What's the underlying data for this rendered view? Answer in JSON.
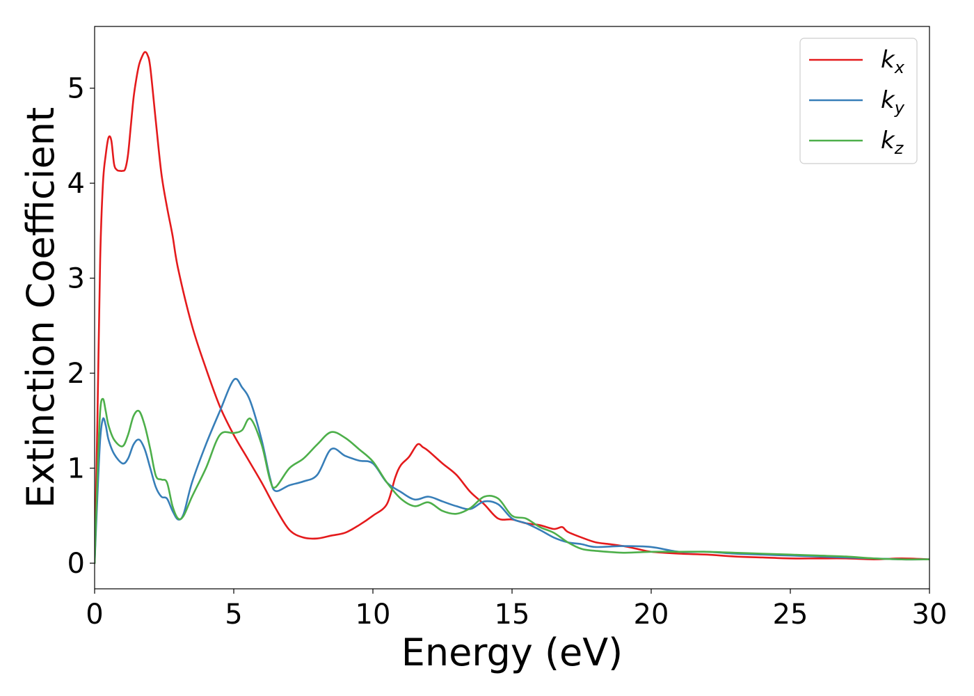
{
  "chart_data": {
    "type": "line",
    "xlabel": "Energy (eV)",
    "ylabel": "Extinction Coefficient",
    "xlim": [
      0,
      30
    ],
    "ylim": [
      -0.27,
      5.65
    ],
    "xticks": [
      0,
      5,
      10,
      15,
      20,
      25,
      30
    ],
    "xtick_labels": [
      "0",
      "5",
      "10",
      "15",
      "20",
      "25",
      "30"
    ],
    "yticks": [
      0,
      1,
      2,
      3,
      4,
      5
    ],
    "ytick_labels": [
      "0",
      "1",
      "2",
      "3",
      "4",
      "5"
    ],
    "grid": false,
    "legend_position": "top-right",
    "series": [
      {
        "name": "k",
        "subscript": "x",
        "color": "#e41a1c",
        "points": [
          [
            0,
            0
          ],
          [
            0.1,
            1.5
          ],
          [
            0.2,
            3.2
          ],
          [
            0.3,
            4.0
          ],
          [
            0.4,
            4.3
          ],
          [
            0.5,
            4.48
          ],
          [
            0.6,
            4.45
          ],
          [
            0.7,
            4.2
          ],
          [
            0.8,
            4.14
          ],
          [
            0.9,
            4.13
          ],
          [
            1.0,
            4.13
          ],
          [
            1.1,
            4.15
          ],
          [
            1.2,
            4.3
          ],
          [
            1.3,
            4.6
          ],
          [
            1.4,
            4.9
          ],
          [
            1.5,
            5.1
          ],
          [
            1.6,
            5.25
          ],
          [
            1.7,
            5.33
          ],
          [
            1.8,
            5.38
          ],
          [
            1.9,
            5.35
          ],
          [
            2.0,
            5.22
          ],
          [
            2.2,
            4.65
          ],
          [
            2.4,
            4.1
          ],
          [
            2.6,
            3.75
          ],
          [
            2.8,
            3.45
          ],
          [
            3.0,
            3.1
          ],
          [
            3.5,
            2.5
          ],
          [
            4.0,
            2.05
          ],
          [
            4.5,
            1.65
          ],
          [
            5.0,
            1.35
          ],
          [
            5.5,
            1.1
          ],
          [
            6.0,
            0.85
          ],
          [
            6.5,
            0.58
          ],
          [
            7.0,
            0.35
          ],
          [
            7.5,
            0.27
          ],
          [
            8.0,
            0.26
          ],
          [
            8.5,
            0.29
          ],
          [
            9.0,
            0.32
          ],
          [
            9.5,
            0.4
          ],
          [
            10.0,
            0.5
          ],
          [
            10.5,
            0.62
          ],
          [
            10.8,
            0.9
          ],
          [
            11.0,
            1.03
          ],
          [
            11.3,
            1.12
          ],
          [
            11.6,
            1.25
          ],
          [
            11.8,
            1.22
          ],
          [
            12.0,
            1.18
          ],
          [
            12.5,
            1.05
          ],
          [
            13.0,
            0.93
          ],
          [
            13.5,
            0.75
          ],
          [
            14.0,
            0.62
          ],
          [
            14.5,
            0.47
          ],
          [
            15.0,
            0.46
          ],
          [
            15.5,
            0.42
          ],
          [
            16.0,
            0.4
          ],
          [
            16.5,
            0.36
          ],
          [
            16.8,
            0.38
          ],
          [
            17.0,
            0.33
          ],
          [
            17.5,
            0.27
          ],
          [
            18.0,
            0.22
          ],
          [
            18.5,
            0.2
          ],
          [
            19.0,
            0.18
          ],
          [
            19.5,
            0.15
          ],
          [
            20.0,
            0.12
          ],
          [
            21.0,
            0.1
          ],
          [
            22.0,
            0.09
          ],
          [
            23.0,
            0.07
          ],
          [
            24.0,
            0.06
          ],
          [
            25.0,
            0.05
          ],
          [
            26.0,
            0.05
          ],
          [
            27.0,
            0.05
          ],
          [
            28.0,
            0.04
          ],
          [
            29.0,
            0.05
          ],
          [
            30.0,
            0.04
          ]
        ]
      },
      {
        "name": "k",
        "subscript": "y",
        "color": "#377eb8",
        "points": [
          [
            0,
            0
          ],
          [
            0.1,
            0.7
          ],
          [
            0.2,
            1.3
          ],
          [
            0.3,
            1.52
          ],
          [
            0.4,
            1.45
          ],
          [
            0.5,
            1.3
          ],
          [
            0.7,
            1.15
          ],
          [
            1.0,
            1.05
          ],
          [
            1.2,
            1.1
          ],
          [
            1.4,
            1.25
          ],
          [
            1.6,
            1.3
          ],
          [
            1.8,
            1.2
          ],
          [
            2.0,
            1.0
          ],
          [
            2.2,
            0.8
          ],
          [
            2.4,
            0.7
          ],
          [
            2.6,
            0.68
          ],
          [
            2.8,
            0.55
          ],
          [
            3.0,
            0.46
          ],
          [
            3.2,
            0.52
          ],
          [
            3.5,
            0.85
          ],
          [
            4.0,
            1.25
          ],
          [
            4.5,
            1.6
          ],
          [
            5.0,
            1.93
          ],
          [
            5.3,
            1.85
          ],
          [
            5.6,
            1.7
          ],
          [
            6.0,
            1.3
          ],
          [
            6.3,
            0.9
          ],
          [
            6.5,
            0.76
          ],
          [
            7.0,
            0.82
          ],
          [
            7.5,
            0.86
          ],
          [
            8.0,
            0.93
          ],
          [
            8.5,
            1.2
          ],
          [
            9.0,
            1.13
          ],
          [
            9.5,
            1.08
          ],
          [
            10.0,
            1.05
          ],
          [
            10.5,
            0.85
          ],
          [
            11.0,
            0.75
          ],
          [
            11.5,
            0.67
          ],
          [
            12.0,
            0.7
          ],
          [
            12.5,
            0.65
          ],
          [
            13.0,
            0.6
          ],
          [
            13.5,
            0.57
          ],
          [
            14.0,
            0.65
          ],
          [
            14.5,
            0.62
          ],
          [
            15.0,
            0.47
          ],
          [
            15.5,
            0.42
          ],
          [
            16.0,
            0.35
          ],
          [
            16.5,
            0.27
          ],
          [
            17.0,
            0.22
          ],
          [
            17.5,
            0.2
          ],
          [
            18.0,
            0.17
          ],
          [
            19.0,
            0.18
          ],
          [
            20.0,
            0.17
          ],
          [
            21.0,
            0.12
          ],
          [
            22.0,
            0.12
          ],
          [
            23.0,
            0.1
          ],
          [
            24.0,
            0.09
          ],
          [
            25.0,
            0.08
          ],
          [
            26.0,
            0.07
          ],
          [
            27.0,
            0.06
          ],
          [
            28.0,
            0.05
          ],
          [
            29.0,
            0.04
          ],
          [
            30.0,
            0.04
          ]
        ]
      },
      {
        "name": "k",
        "subscript": "z",
        "color": "#4daf4a",
        "points": [
          [
            0,
            0
          ],
          [
            0.1,
            0.9
          ],
          [
            0.2,
            1.6
          ],
          [
            0.3,
            1.73
          ],
          [
            0.4,
            1.6
          ],
          [
            0.5,
            1.45
          ],
          [
            0.7,
            1.3
          ],
          [
            1.0,
            1.23
          ],
          [
            1.2,
            1.35
          ],
          [
            1.4,
            1.55
          ],
          [
            1.6,
            1.6
          ],
          [
            1.8,
            1.45
          ],
          [
            2.0,
            1.2
          ],
          [
            2.2,
            0.92
          ],
          [
            2.4,
            0.88
          ],
          [
            2.6,
            0.85
          ],
          [
            2.8,
            0.6
          ],
          [
            3.0,
            0.47
          ],
          [
            3.2,
            0.5
          ],
          [
            3.5,
            0.7
          ],
          [
            4.0,
            1.0
          ],
          [
            4.5,
            1.35
          ],
          [
            5.0,
            1.37
          ],
          [
            5.3,
            1.4
          ],
          [
            5.6,
            1.52
          ],
          [
            6.0,
            1.25
          ],
          [
            6.3,
            0.88
          ],
          [
            6.5,
            0.8
          ],
          [
            7.0,
            1.0
          ],
          [
            7.5,
            1.1
          ],
          [
            8.0,
            1.25
          ],
          [
            8.5,
            1.38
          ],
          [
            9.0,
            1.32
          ],
          [
            9.5,
            1.2
          ],
          [
            10.0,
            1.07
          ],
          [
            10.5,
            0.85
          ],
          [
            11.0,
            0.68
          ],
          [
            11.5,
            0.6
          ],
          [
            12.0,
            0.64
          ],
          [
            12.5,
            0.55
          ],
          [
            13.0,
            0.52
          ],
          [
            13.5,
            0.58
          ],
          [
            14.0,
            0.7
          ],
          [
            14.5,
            0.68
          ],
          [
            15.0,
            0.5
          ],
          [
            15.5,
            0.47
          ],
          [
            16.0,
            0.38
          ],
          [
            16.5,
            0.32
          ],
          [
            17.0,
            0.22
          ],
          [
            17.5,
            0.15
          ],
          [
            18.0,
            0.13
          ],
          [
            19.0,
            0.11
          ],
          [
            20.0,
            0.12
          ],
          [
            21.0,
            0.12
          ],
          [
            22.0,
            0.12
          ],
          [
            23.0,
            0.11
          ],
          [
            24.0,
            0.1
          ],
          [
            25.0,
            0.09
          ],
          [
            26.0,
            0.08
          ],
          [
            27.0,
            0.07
          ],
          [
            28.0,
            0.05
          ],
          [
            29.0,
            0.04
          ],
          [
            30.0,
            0.04
          ]
        ]
      }
    ]
  }
}
